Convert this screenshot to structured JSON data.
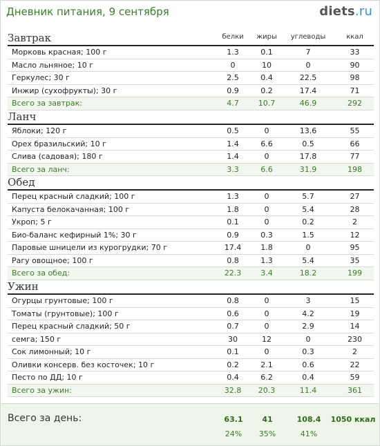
{
  "title": "Дневник питания, 9 сентября",
  "logo": {
    "name": "diets",
    "tld": ".ru"
  },
  "columns": [
    "белки",
    "жиры",
    "углеводы",
    "ккал"
  ],
  "meals": [
    {
      "name": "Завтрак",
      "items": [
        {
          "name": "Морковь красная; 100 г",
          "p": "1.3",
          "f": "0.1",
          "c": "7",
          "kcal": "33"
        },
        {
          "name": "Масло льняное; 10 г",
          "p": "0",
          "f": "10",
          "c": "0",
          "kcal": "90"
        },
        {
          "name": "Геркулес; 30 г",
          "p": "2.5",
          "f": "0.4",
          "c": "22.5",
          "kcal": "98"
        },
        {
          "name": "Инжир (сухофрукты); 30 г",
          "p": "0.9",
          "f": "0.2",
          "c": "17.4",
          "kcal": "71"
        }
      ],
      "total": {
        "label": "Всего за завтрак:",
        "p": "4.7",
        "f": "10.7",
        "c": "46.9",
        "kcal": "292"
      }
    },
    {
      "name": "Ланч",
      "items": [
        {
          "name": "Яблоки; 120 г",
          "p": "0.5",
          "f": "0",
          "c": "13.6",
          "kcal": "55"
        },
        {
          "name": "Орех бразильский; 10 г",
          "p": "1.4",
          "f": "6.6",
          "c": "0.5",
          "kcal": "66"
        },
        {
          "name": "Слива (садовая); 180 г",
          "p": "1.4",
          "f": "0",
          "c": "17.8",
          "kcal": "77"
        }
      ],
      "total": {
        "label": "Всего за ланч:",
        "p": "3.3",
        "f": "6.6",
        "c": "31.9",
        "kcal": "198"
      }
    },
    {
      "name": "Обед",
      "items": [
        {
          "name": "Перец красный сладкий; 100 г",
          "p": "1.3",
          "f": "0",
          "c": "5.7",
          "kcal": "27"
        },
        {
          "name": "Капуста белокачанная; 100 г",
          "p": "1.8",
          "f": "0",
          "c": "5.4",
          "kcal": "28"
        },
        {
          "name": "Укроп; 5 г",
          "p": "0.1",
          "f": "0",
          "c": "0.2",
          "kcal": "2"
        },
        {
          "name": "Био-баланс кефирный 1%; 30 г",
          "p": "0.9",
          "f": "0.3",
          "c": "1.5",
          "kcal": "12"
        },
        {
          "name": "Паровые шницели из курогрудки; 70 г",
          "p": "17.4",
          "f": "1.8",
          "c": "0",
          "kcal": "95"
        },
        {
          "name": "Рагу овощное; 100 г",
          "p": "0.8",
          "f": "1.3",
          "c": "5.4",
          "kcal": "35"
        }
      ],
      "total": {
        "label": "Всего за обед:",
        "p": "22.3",
        "f": "3.4",
        "c": "18.2",
        "kcal": "199"
      }
    },
    {
      "name": "Ужин",
      "items": [
        {
          "name": "Огурцы грунтовые; 100 г",
          "p": "0.8",
          "f": "0",
          "c": "3",
          "kcal": "15"
        },
        {
          "name": "Томаты (грунтовые); 100 г",
          "p": "0.6",
          "f": "0",
          "c": "4.2",
          "kcal": "19"
        },
        {
          "name": "Перец красный сладкий; 50 г",
          "p": "0.7",
          "f": "0",
          "c": "2.9",
          "kcal": "14"
        },
        {
          "name": "семга; 150 г",
          "p": "30",
          "f": "12",
          "c": "0",
          "kcal": "230"
        },
        {
          "name": "Сок лимонный; 10 г",
          "p": "0.1",
          "f": "0",
          "c": "0.3",
          "kcal": "2"
        },
        {
          "name": "Оливки консерв. без косточек; 10 г",
          "p": "0.2",
          "f": "2.1",
          "c": "0.6",
          "kcal": "22"
        },
        {
          "name": "Песто по ДД; 10 г",
          "p": "0.4",
          "f": "6.2",
          "c": "0.4",
          "kcal": "59"
        }
      ],
      "total": {
        "label": "Всего за ужин:",
        "p": "32.8",
        "f": "20.3",
        "c": "11.4",
        "kcal": "361"
      }
    }
  ],
  "day_total": {
    "label": "Всего за день:",
    "p": "63.1",
    "f": "41",
    "c": "108.4",
    "kcal": "1050 ккал",
    "p_pct": "24%",
    "f_pct": "35%",
    "c_pct": "41%"
  }
}
